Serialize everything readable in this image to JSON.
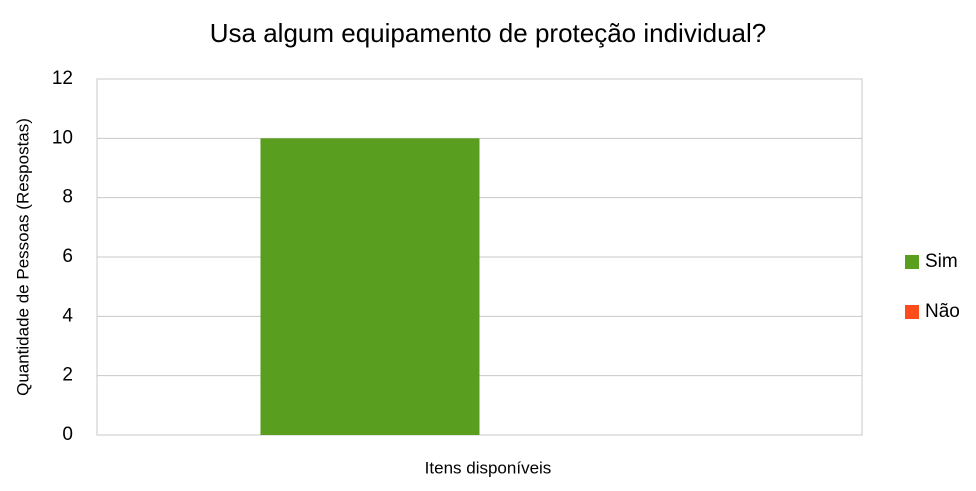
{
  "chart_data": {
    "type": "bar",
    "title": "Usa algum equipamento de proteção individual?",
    "x_label": "Itens disponíveis",
    "y_label": "Quantidade de Pessoas (Respostas)",
    "categories": [
      null
    ],
    "series": [
      {
        "name": "Sim",
        "color": "#5a9e1f",
        "values": [
          10
        ]
      },
      {
        "name": "Não",
        "color": "#fc4c1c",
        "values": [
          0
        ]
      }
    ],
    "ylim": [
      0,
      12
    ],
    "yticks": [
      0,
      2,
      4,
      6,
      8,
      10,
      12
    ],
    "grid": true,
    "legend": "right"
  }
}
